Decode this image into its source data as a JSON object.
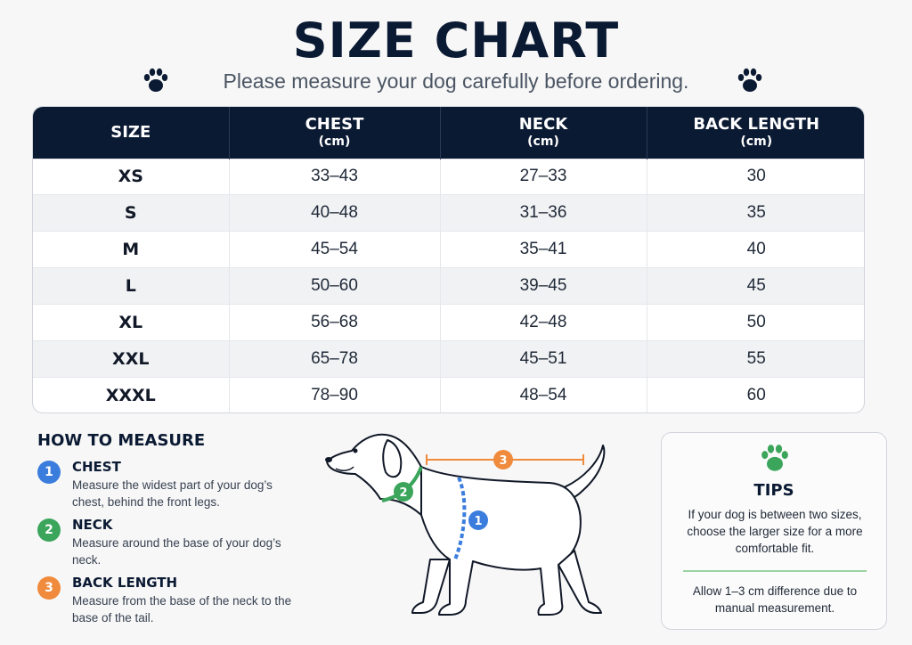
{
  "header": {
    "title": "SIZE CHART",
    "subtitle": "Please measure your dog carefully before ordering.",
    "icon": "paw-icon",
    "icon_color": "#0b1a33"
  },
  "table": {
    "columns": [
      {
        "label": "SIZE",
        "unit": ""
      },
      {
        "label": "CHEST",
        "unit": "(cm)"
      },
      {
        "label": "NECK",
        "unit": "(cm)"
      },
      {
        "label": "BACK LENGTH",
        "unit": "(cm)"
      }
    ],
    "rows": [
      [
        "XS",
        "33–43",
        "27–33",
        "30"
      ],
      [
        "S",
        "40–48",
        "31–36",
        "35"
      ],
      [
        "M",
        "45–54",
        "35–41",
        "40"
      ],
      [
        "L",
        "50–60",
        "39–45",
        "45"
      ],
      [
        "XL",
        "56–68",
        "42–48",
        "50"
      ],
      [
        "XXL",
        "65–78",
        "45–51",
        "55"
      ],
      [
        "XXXL",
        "78–90",
        "48–54",
        "60"
      ]
    ],
    "header_color": "#0b1a33"
  },
  "how_to": {
    "title": "HOW TO MEASURE",
    "steps": [
      {
        "number": "1",
        "name": "CHEST",
        "description": "Measure the widest part of your dog’s chest, behind the front legs.",
        "color": "#3b7ddd"
      },
      {
        "number": "2",
        "name": "NECK",
        "description": "Measure around the base of your dog’s neck.",
        "color": "#3ba55c"
      },
      {
        "number": "3",
        "name": "BACK LENGTH",
        "description": "Measure from the base of the neck to the base of the tail.",
        "color": "#f08a3c"
      }
    ]
  },
  "diagram": {
    "icon": "dog-illustration",
    "markers": [
      "1",
      "2",
      "3"
    ]
  },
  "tips": {
    "icon": "paw-icon",
    "icon_color": "#3ba55c",
    "title": "TIPS",
    "line1": "If your dog is between two sizes, choose the larger size for a more comfortable fit.",
    "line2": "Allow 1–3 cm difference due to manual measurement."
  }
}
